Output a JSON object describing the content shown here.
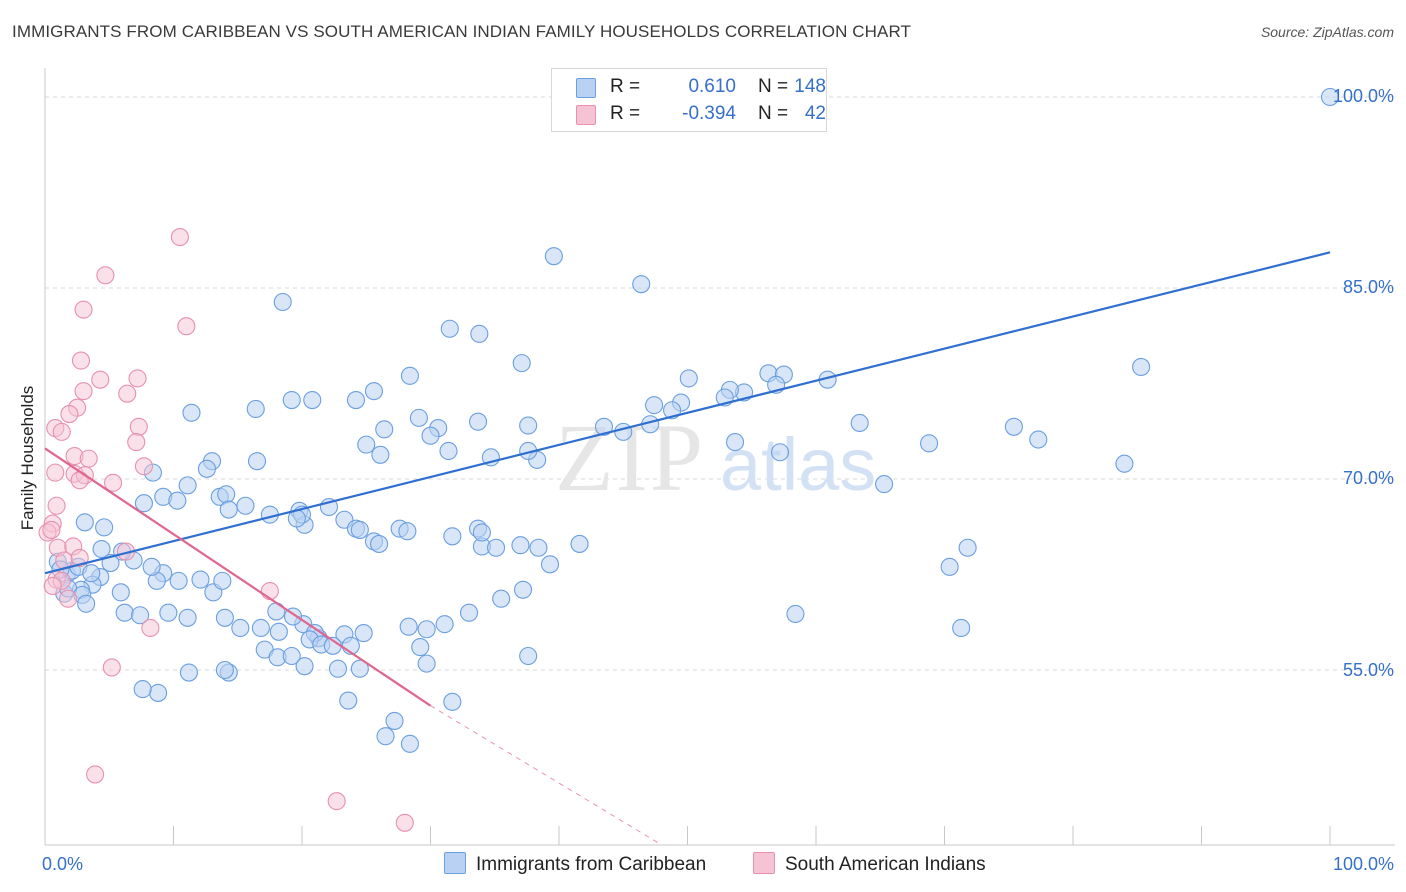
{
  "title": "IMMIGRANTS FROM CARIBBEAN VS SOUTH AMERICAN INDIAN FAMILY HOUSEHOLDS CORRELATION CHART",
  "source": "Source: ZipAtlas.com",
  "watermark": {
    "zip": "ZIP",
    "atlas": "atlas"
  },
  "legend": {
    "rows": [
      {
        "r_label": "R =",
        "r_value": "0.610",
        "n_label": "N =",
        "n_value": "148"
      },
      {
        "r_label": "R =",
        "r_value": "-0.394",
        "n_label": "N =",
        "n_value": "42"
      }
    ]
  },
  "bottom_legend": {
    "series1": "Immigrants from Caribbean",
    "series2": "South American Indians"
  },
  "axes": {
    "ylabel": "Family Households",
    "y_ticks": [
      "100.0%",
      "85.0%",
      "70.0%",
      "55.0%"
    ],
    "x_left": "0.0%",
    "x_right": "100.0%"
  },
  "colors": {
    "blue": "#6a9fe0",
    "blue_fill": "#b9d1f2",
    "blue_line": "#2f6fcf",
    "pink": "#e890ad",
    "pink_fill": "#f6c3d4",
    "pink_line": "#e0658f",
    "tick_text": "#3670c9"
  },
  "chart_data": {
    "type": "scatter",
    "xlim": [
      0,
      100
    ],
    "ylim": [
      40,
      102
    ],
    "y_ticks": [
      55,
      70,
      85,
      100
    ],
    "grid": true,
    "series": [
      {
        "name": "Immigrants from Caribbean",
        "color": "#6a9fe0",
        "trend": {
          "x0": 0,
          "y0": 62.6,
          "x1": 100,
          "y1": 87.8
        },
        "points": [
          [
            100,
            100
          ],
          [
            39.6,
            87.5
          ],
          [
            46.4,
            85.3
          ],
          [
            18.5,
            83.9
          ],
          [
            31.5,
            81.8
          ],
          [
            33.8,
            81.4
          ],
          [
            37.1,
            79.1
          ],
          [
            28.4,
            78.1
          ],
          [
            56.3,
            78.3
          ],
          [
            57.5,
            78.2
          ],
          [
            50.1,
            77.9
          ],
          [
            60.9,
            77.8
          ],
          [
            56.9,
            77.4
          ],
          [
            54.4,
            76.8
          ],
          [
            53.3,
            77.0
          ],
          [
            49.5,
            76.0
          ],
          [
            47.4,
            75.8
          ],
          [
            48.8,
            75.4
          ],
          [
            52.9,
            76.4
          ],
          [
            24.2,
            76.2
          ],
          [
            25.6,
            76.9
          ],
          [
            19.2,
            76.2
          ],
          [
            20.8,
            76.2
          ],
          [
            16.4,
            75.5
          ],
          [
            11.4,
            75.2
          ],
          [
            33.7,
            74.5
          ],
          [
            29.1,
            74.8
          ],
          [
            43.5,
            74.1
          ],
          [
            26.4,
            73.9
          ],
          [
            45.0,
            73.7
          ],
          [
            37.6,
            74.2
          ],
          [
            30.6,
            74.0
          ],
          [
            26.1,
            71.9
          ],
          [
            25.0,
            72.7
          ],
          [
            30.0,
            73.4
          ],
          [
            47.1,
            74.3
          ],
          [
            53.7,
            72.9
          ],
          [
            57.2,
            72.1
          ],
          [
            31.4,
            72.2
          ],
          [
            38.3,
            71.5
          ],
          [
            37.6,
            72.2
          ],
          [
            34.7,
            71.7
          ],
          [
            16.5,
            71.4
          ],
          [
            13.0,
            71.4
          ],
          [
            12.6,
            70.8
          ],
          [
            13.6,
            68.6
          ],
          [
            9.2,
            68.6
          ],
          [
            14.1,
            68.8
          ],
          [
            8.4,
            70.5
          ],
          [
            10.3,
            68.3
          ],
          [
            11.1,
            69.5
          ],
          [
            7.7,
            68.1
          ],
          [
            14.3,
            67.6
          ],
          [
            15.6,
            67.9
          ],
          [
            17.5,
            67.2
          ],
          [
            19.8,
            67.5
          ],
          [
            22.1,
            67.8
          ],
          [
            20.2,
            66.4
          ],
          [
            20.0,
            67.2
          ],
          [
            19.6,
            66.9
          ],
          [
            23.3,
            66.8
          ],
          [
            24.2,
            66.1
          ],
          [
            24.5,
            66.0
          ],
          [
            27.6,
            66.1
          ],
          [
            28.2,
            65.9
          ],
          [
            25.6,
            65.1
          ],
          [
            26.0,
            64.9
          ],
          [
            31.7,
            65.5
          ],
          [
            33.7,
            66.1
          ],
          [
            34.0,
            64.7
          ],
          [
            34.0,
            65.8
          ],
          [
            35.1,
            64.6
          ],
          [
            37.0,
            64.8
          ],
          [
            38.4,
            64.6
          ],
          [
            41.6,
            64.9
          ],
          [
            39.3,
            63.3
          ],
          [
            37.2,
            61.3
          ],
          [
            35.5,
            60.6
          ],
          [
            33.0,
            59.5
          ],
          [
            31.1,
            58.6
          ],
          [
            29.7,
            58.2
          ],
          [
            28.3,
            58.4
          ],
          [
            24.8,
            57.9
          ],
          [
            23.3,
            57.8
          ],
          [
            21.3,
            57.5
          ],
          [
            20.1,
            58.6
          ],
          [
            21.0,
            57.9
          ],
          [
            19.3,
            59.2
          ],
          [
            18.0,
            59.6
          ],
          [
            13.1,
            61.1
          ],
          [
            12.1,
            62.1
          ],
          [
            13.8,
            62.0
          ],
          [
            10.4,
            62.0
          ],
          [
            9.2,
            62.6
          ],
          [
            8.7,
            62.0
          ],
          [
            8.3,
            63.1
          ],
          [
            6.9,
            63.6
          ],
          [
            6.0,
            64.3
          ],
          [
            5.9,
            61.1
          ],
          [
            3.1,
            66.6
          ],
          [
            4.4,
            64.5
          ],
          [
            4.6,
            66.2
          ],
          [
            5.1,
            63.4
          ],
          [
            4.3,
            62.3
          ],
          [
            3.7,
            61.7
          ],
          [
            2.8,
            61.3
          ],
          [
            1.5,
            61.0
          ],
          [
            1.7,
            62.5
          ],
          [
            2.1,
            62.8
          ],
          [
            2.6,
            63.1
          ],
          [
            3.6,
            62.6
          ],
          [
            1.0,
            63.5
          ],
          [
            1.2,
            62.9
          ],
          [
            1.8,
            61.4
          ],
          [
            2.9,
            60.9
          ],
          [
            3.2,
            60.2
          ],
          [
            6.2,
            59.5
          ],
          [
            7.4,
            59.3
          ],
          [
            9.6,
            59.5
          ],
          [
            11.1,
            59.1
          ],
          [
            14.0,
            59.1
          ],
          [
            15.2,
            58.3
          ],
          [
            16.8,
            58.3
          ],
          [
            18.2,
            58.0
          ],
          [
            20.6,
            57.4
          ],
          [
            21.5,
            57.0
          ],
          [
            22.4,
            56.9
          ],
          [
            23.8,
            56.9
          ],
          [
            17.1,
            56.6
          ],
          [
            18.1,
            56.0
          ],
          [
            19.2,
            56.1
          ],
          [
            20.2,
            55.3
          ],
          [
            22.8,
            55.1
          ],
          [
            24.5,
            55.1
          ],
          [
            14.3,
            54.8
          ],
          [
            14.0,
            55.0
          ],
          [
            11.2,
            54.8
          ],
          [
            29.2,
            56.8
          ],
          [
            29.7,
            55.5
          ],
          [
            37.6,
            56.1
          ],
          [
            31.7,
            52.5
          ],
          [
            27.2,
            51.0
          ],
          [
            26.5,
            49.8
          ],
          [
            28.4,
            49.2
          ],
          [
            23.6,
            52.6
          ],
          [
            8.8,
            53.2
          ],
          [
            7.6,
            53.5
          ],
          [
            71.3,
            58.3
          ],
          [
            63.4,
            74.4
          ],
          [
            58.4,
            59.4
          ],
          [
            70.4,
            63.1
          ],
          [
            71.8,
            64.6
          ],
          [
            77.3,
            73.1
          ],
          [
            75.4,
            74.1
          ],
          [
            65.3,
            69.6
          ],
          [
            68.8,
            72.8
          ],
          [
            84.0,
            71.2
          ],
          [
            85.3,
            78.8
          ]
        ]
      },
      {
        "name": "South American Indians",
        "color": "#e890ad",
        "trend": {
          "x0": 0,
          "y0": 72.4,
          "x1": 30.0,
          "y1": 52.2,
          "dash_x1": 48.0,
          "dash_y1": 40.0
        },
        "points": [
          [
            10.5,
            89.0
          ],
          [
            4.7,
            86.0
          ],
          [
            3.0,
            83.3
          ],
          [
            11.0,
            82.0
          ],
          [
            2.8,
            79.3
          ],
          [
            4.3,
            77.8
          ],
          [
            7.2,
            77.9
          ],
          [
            3.0,
            76.9
          ],
          [
            6.4,
            76.7
          ],
          [
            2.5,
            75.6
          ],
          [
            1.9,
            75.1
          ],
          [
            0.8,
            74.0
          ],
          [
            1.3,
            73.7
          ],
          [
            7.3,
            74.1
          ],
          [
            7.1,
            72.9
          ],
          [
            2.3,
            71.8
          ],
          [
            3.4,
            71.6
          ],
          [
            7.7,
            71.0
          ],
          [
            0.8,
            70.5
          ],
          [
            2.3,
            70.4
          ],
          [
            3.1,
            70.3
          ],
          [
            2.7,
            69.9
          ],
          [
            5.3,
            69.7
          ],
          [
            0.9,
            67.9
          ],
          [
            0.6,
            66.5
          ],
          [
            0.2,
            65.8
          ],
          [
            0.5,
            66.0
          ],
          [
            1.0,
            64.6
          ],
          [
            1.5,
            63.6
          ],
          [
            6.3,
            64.3
          ],
          [
            2.2,
            64.7
          ],
          [
            0.9,
            62.1
          ],
          [
            1.3,
            62.0
          ],
          [
            0.6,
            61.6
          ],
          [
            1.8,
            60.6
          ],
          [
            17.5,
            61.2
          ],
          [
            8.2,
            58.3
          ],
          [
            5.2,
            55.2
          ],
          [
            3.9,
            46.8
          ],
          [
            22.7,
            44.7
          ],
          [
            28.0,
            43.0
          ],
          [
            2.7,
            63.8
          ]
        ]
      }
    ]
  }
}
